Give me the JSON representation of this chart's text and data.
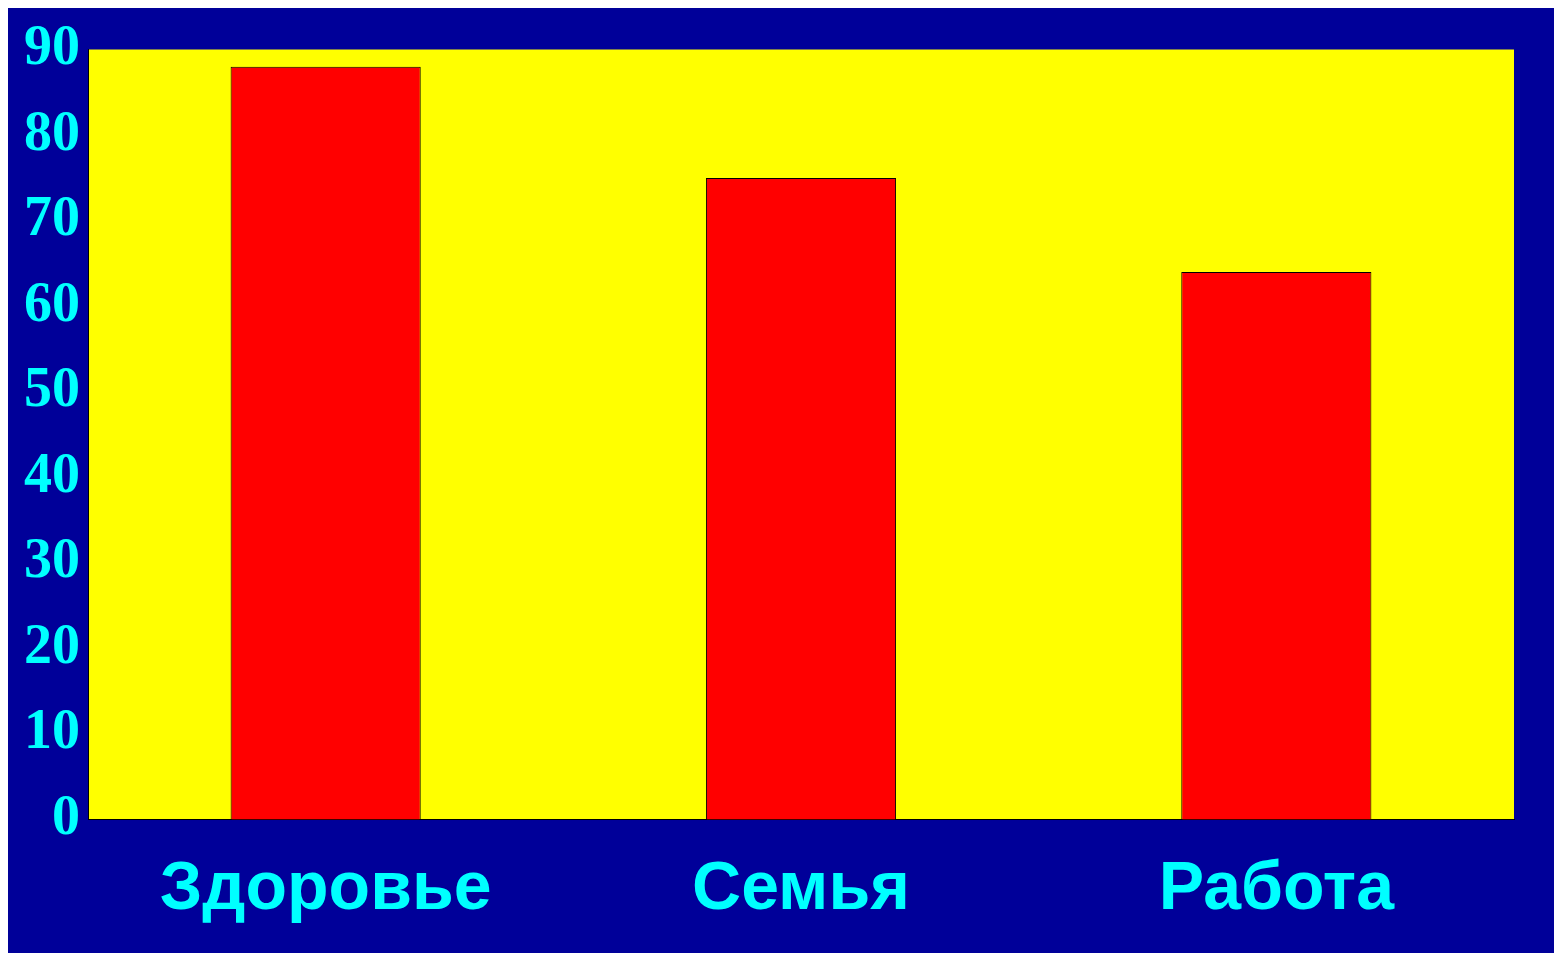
{
  "chart_data": {
    "type": "bar",
    "categories": [
      "Здоровье",
      "Семья",
      "Работа"
    ],
    "values": [
      88,
      75,
      64
    ],
    "color": "#ff0000",
    "ylim": [
      0,
      90
    ],
    "yticks": [
      0,
      10,
      20,
      30,
      40,
      50,
      60,
      70,
      80,
      90
    ],
    "grid": false,
    "legend": false
  }
}
